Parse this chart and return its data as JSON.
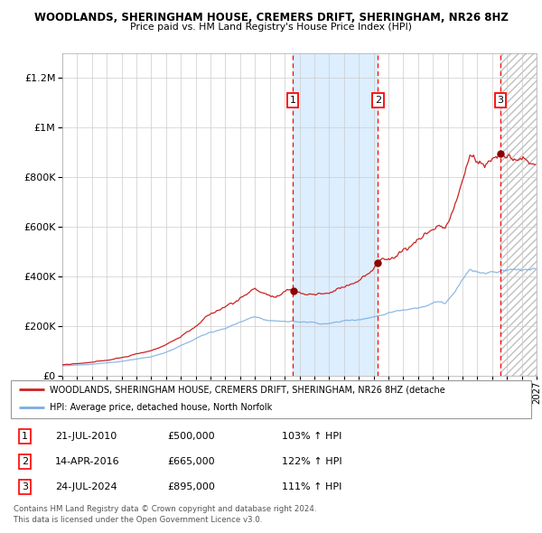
{
  "title1": "WOODLANDS, SHERINGHAM HOUSE, CREMERS DRIFT, SHERINGHAM, NR26 8HZ",
  "title2": "Price paid vs. HM Land Registry's House Price Index (HPI)",
  "legend_line1": "WOODLANDS, SHERINGHAM HOUSE, CREMERS DRIFT, SHERINGHAM, NR26 8HZ (detache",
  "legend_line2": "HPI: Average price, detached house, North Norfolk",
  "footer1": "Contains HM Land Registry data © Crown copyright and database right 2024.",
  "footer2": "This data is licensed under the Open Government Licence v3.0.",
  "sale_events": [
    {
      "num": 1,
      "date": "21-JUL-2010",
      "price": 500000,
      "pct": "103%",
      "year": 2010.55
    },
    {
      "num": 2,
      "date": "14-APR-2016",
      "price": 665000,
      "pct": "122%",
      "year": 2016.29
    },
    {
      "num": 3,
      "date": "24-JUL-2024",
      "price": 895000,
      "pct": "111%",
      "year": 2024.55
    }
  ],
  "hpi_color": "#7aade0",
  "price_color": "#cc2222",
  "sale_dot_color": "#8b0000",
  "background_color": "#ffffff",
  "grid_color": "#cccccc",
  "shade_color": "#ddeeff",
  "ylim": [
    0,
    1300000
  ],
  "xlim_start": 1995.0,
  "xlim_end": 2027.0,
  "yticks": [
    0,
    200000,
    400000,
    600000,
    800000,
    1000000,
    1200000
  ],
  "ytick_labels": [
    "£0",
    "£200K",
    "£400K",
    "£600K",
    "£800K",
    "£1M",
    "£1.2M"
  ]
}
